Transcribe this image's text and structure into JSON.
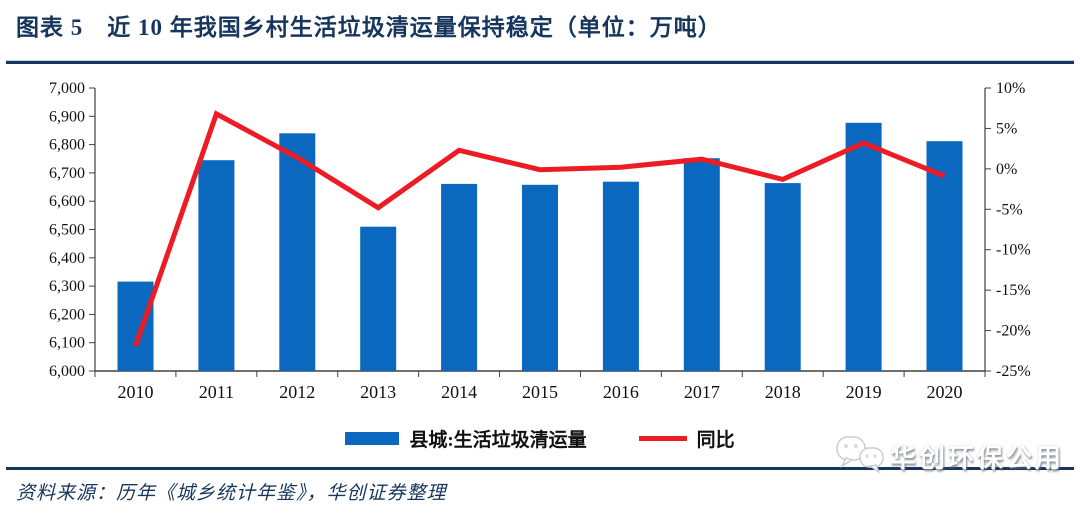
{
  "header": {
    "title": "图表 5　近 10 年我国乡村生活垃圾清运量保持稳定（单位：万吨）"
  },
  "chart_data": {
    "type": "bar",
    "title": "近10年我国乡村生活垃圾清运量保持稳定",
    "unit": "万吨",
    "categories": [
      "2010",
      "2011",
      "2012",
      "2013",
      "2014",
      "2015",
      "2016",
      "2017",
      "2018",
      "2019",
      "2020"
    ],
    "series": [
      {
        "name": "县城:生活垃圾清运量",
        "type": "bar",
        "axis": "left",
        "color": "#0a68be",
        "values": [
          6316,
          6745,
          6840,
          6510,
          6661,
          6658,
          6669,
          6752,
          6664,
          6877,
          6812
        ]
      },
      {
        "name": "同比",
        "type": "line",
        "axis": "right",
        "color": "#ed1c24",
        "values": [
          -21.9,
          6.8,
          1.4,
          -4.8,
          2.3,
          -0.1,
          0.2,
          1.2,
          -1.3,
          3.2,
          -0.9
        ]
      }
    ],
    "left_axis": {
      "min": 6000,
      "max": 7000,
      "step": 100,
      "labels": [
        "7,000",
        "6,900",
        "6,800",
        "6,700",
        "6,600",
        "6,500",
        "6,400",
        "6,300",
        "6,200",
        "6,100",
        "6,000"
      ]
    },
    "right_axis": {
      "min": -25,
      "max": 10,
      "step": 5,
      "labels": [
        "10%",
        "5%",
        "0%",
        "-5%",
        "-10%",
        "-15%",
        "-20%",
        "-25%"
      ]
    },
    "grid": false,
    "legend_position": "bottom"
  },
  "legend": {
    "bar_label": "县城:生活垃圾清运量",
    "line_label": "同比"
  },
  "footer": {
    "source": "资料来源：历年《城乡统计年鉴》，华创证券整理",
    "watermark": "华创环保公用"
  },
  "colors": {
    "navy": "#17365d",
    "bar_blue": "#0a68be",
    "line_red": "#ed1c24",
    "axis": "#404040"
  }
}
